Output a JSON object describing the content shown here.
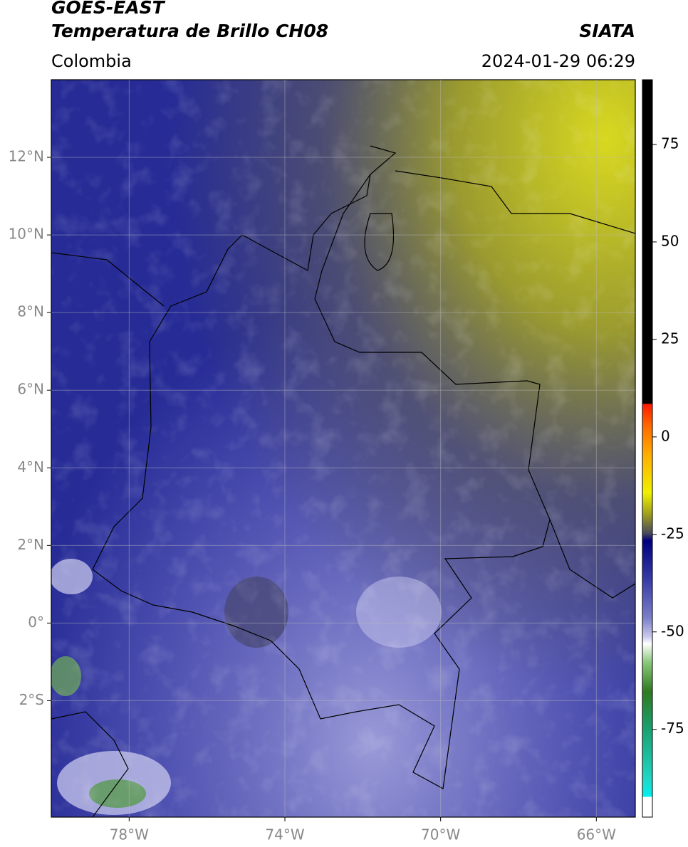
{
  "header": {
    "title": "GOES-EAST",
    "subtitle": "Temperatura de Brillo CH08",
    "source": "SIATA",
    "region": "Colombia",
    "datetime": "2024-01-29 06:29"
  },
  "map": {
    "xlim": [
      -80,
      -65
    ],
    "ylim": [
      -5,
      14
    ],
    "xticks": [
      {
        "value": -78,
        "label": "78°W"
      },
      {
        "value": -74,
        "label": "74°W"
      },
      {
        "value": -70,
        "label": "70°W"
      },
      {
        "value": -66,
        "label": "66°W"
      }
    ],
    "yticks": [
      {
        "value": -2,
        "label": "2°S"
      },
      {
        "value": 0,
        "label": "0°"
      },
      {
        "value": 2,
        "label": "2°N"
      },
      {
        "value": 4,
        "label": "4°N"
      },
      {
        "value": 6,
        "label": "6°N"
      },
      {
        "value": 8,
        "label": "8°N"
      },
      {
        "value": 10,
        "label": "10°N"
      },
      {
        "value": 12,
        "label": "12°N"
      }
    ],
    "grid": true
  },
  "colorbar": {
    "lim": [
      -97.5,
      91.6
    ],
    "ticks": [
      -75,
      -50,
      -25,
      0,
      25,
      50,
      75
    ]
  }
}
